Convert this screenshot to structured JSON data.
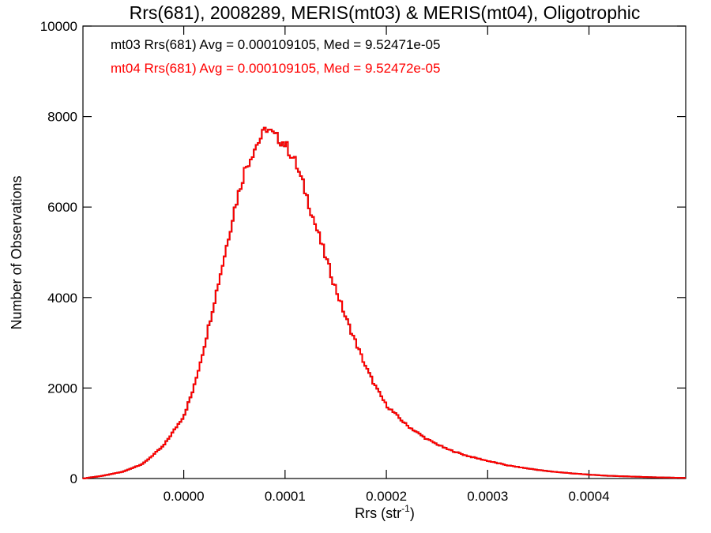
{
  "chart_data": {
    "type": "histogram",
    "title": "Rrs(681), 2008289, MERIS(mt03) & MERIS(mt04), Oligotrophic",
    "xlabel_main": "Rrs (str",
    "xlabel_sup": "-1",
    "xlabel_close": ")",
    "ylabel": "Number of Observations",
    "xlim": [
      -9.95e-05,
      0.0004955
    ],
    "ylim": [
      0,
      10000
    ],
    "x_ticks": [
      0.0,
      0.0001,
      0.0002,
      0.0003,
      0.0004
    ],
    "x_tick_labels": [
      "0.0000",
      "0.0001",
      "0.0002",
      "0.0003",
      "0.0004"
    ],
    "y_ticks": [
      0,
      2000,
      4000,
      6000,
      8000,
      10000
    ],
    "y_tick_labels": [
      "0",
      "2000",
      "4000",
      "6000",
      "8000",
      "10000"
    ],
    "grid": false,
    "annotations": [
      {
        "text": "mt03 Rrs(681) Avg = 0.000109105, Med = 9.52471e-05",
        "color": "#000000"
      },
      {
        "text": "mt04 Rrs(681) Avg = 0.000109105, Med = 9.52472e-05",
        "color": "#ff0000"
      }
    ],
    "series": [
      {
        "color": "#000000",
        "points": [
          [
            -9.95e-05,
            0
          ],
          [
            -8e-05,
            60
          ],
          [
            -6e-05,
            150
          ],
          [
            -4e-05,
            330
          ],
          [
            -2e-05,
            720
          ],
          [
            -1e-05,
            1050
          ],
          [
            0.0,
            1380
          ],
          [
            1e-05,
            2000
          ],
          [
            2e-05,
            2900
          ],
          [
            3e-05,
            3900
          ],
          [
            4e-05,
            4900
          ],
          [
            5e-05,
            5950
          ],
          [
            6e-05,
            6800
          ],
          [
            7e-05,
            7300
          ],
          [
            8.2e-05,
            7750
          ],
          [
            8.8e-05,
            7600
          ],
          [
            0.0001,
            7400
          ],
          [
            0.00011,
            7000
          ],
          [
            0.00012,
            6350
          ],
          [
            0.00013,
            5600
          ],
          [
            0.00014,
            4900
          ],
          [
            0.00015,
            4200
          ],
          [
            0.00016,
            3550
          ],
          [
            0.00017,
            3000
          ],
          [
            0.00018,
            2450
          ],
          [
            0.00019,
            2000
          ],
          [
            0.0002,
            1620
          ],
          [
            0.00022,
            1180
          ],
          [
            0.00024,
            870
          ],
          [
            0.00026,
            650
          ],
          [
            0.00028,
            500
          ],
          [
            0.0003,
            390
          ],
          [
            0.00032,
            290
          ],
          [
            0.00034,
            220
          ],
          [
            0.00036,
            160
          ],
          [
            0.00038,
            120
          ],
          [
            0.0004,
            85
          ],
          [
            0.00042,
            60
          ],
          [
            0.00044,
            45
          ],
          [
            0.00046,
            30
          ],
          [
            0.00048,
            20
          ],
          [
            0.0004955,
            15
          ]
        ]
      },
      {
        "color": "#ff0000",
        "points": [
          [
            -9.95e-05,
            0
          ],
          [
            -8e-05,
            60
          ],
          [
            -6e-05,
            150
          ],
          [
            -4e-05,
            330
          ],
          [
            -2e-05,
            720
          ],
          [
            -1e-05,
            1050
          ],
          [
            0.0,
            1380
          ],
          [
            1e-05,
            2000
          ],
          [
            2e-05,
            2900
          ],
          [
            3e-05,
            3900
          ],
          [
            4e-05,
            4900
          ],
          [
            5e-05,
            5950
          ],
          [
            6e-05,
            6800
          ],
          [
            7e-05,
            7300
          ],
          [
            8.2e-05,
            7750
          ],
          [
            8.8e-05,
            7600
          ],
          [
            0.0001,
            7400
          ],
          [
            0.00011,
            7000
          ],
          [
            0.00012,
            6350
          ],
          [
            0.00013,
            5600
          ],
          [
            0.00014,
            4900
          ],
          [
            0.00015,
            4200
          ],
          [
            0.00016,
            3550
          ],
          [
            0.00017,
            3000
          ],
          [
            0.00018,
            2450
          ],
          [
            0.00019,
            2000
          ],
          [
            0.0002,
            1620
          ],
          [
            0.00022,
            1180
          ],
          [
            0.00024,
            870
          ],
          [
            0.00026,
            650
          ],
          [
            0.00028,
            500
          ],
          [
            0.0003,
            390
          ],
          [
            0.00032,
            290
          ],
          [
            0.00034,
            220
          ],
          [
            0.00036,
            160
          ],
          [
            0.00038,
            120
          ],
          [
            0.0004,
            85
          ],
          [
            0.00042,
            60
          ],
          [
            0.00044,
            45
          ],
          [
            0.00046,
            30
          ],
          [
            0.00048,
            20
          ],
          [
            0.0004955,
            15
          ]
        ]
      }
    ]
  }
}
